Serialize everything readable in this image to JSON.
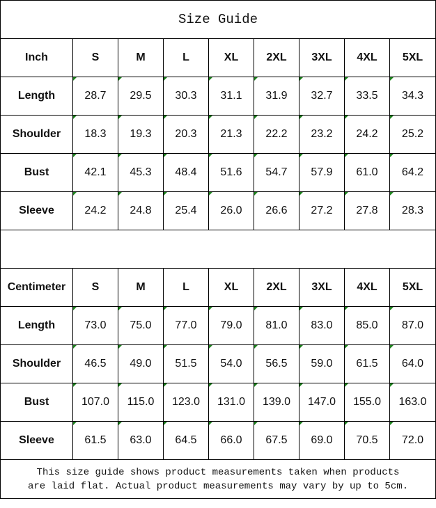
{
  "title": "Size Guide",
  "sizes": [
    "S",
    "M",
    "L",
    "XL",
    "2XL",
    "3XL",
    "4XL",
    "5XL"
  ],
  "inch": {
    "unit_label": "Inch",
    "rows": [
      {
        "label": "Length",
        "values": [
          "28.7",
          "29.5",
          "30.3",
          "31.1",
          "31.9",
          "32.7",
          "33.5",
          "34.3"
        ]
      },
      {
        "label": "Shoulder",
        "values": [
          "18.3",
          "19.3",
          "20.3",
          "21.3",
          "22.2",
          "23.2",
          "24.2",
          "25.2"
        ]
      },
      {
        "label": "Bust",
        "values": [
          "42.1",
          "45.3",
          "48.4",
          "51.6",
          "54.7",
          "57.9",
          "61.0",
          "64.2"
        ]
      },
      {
        "label": "Sleeve",
        "values": [
          "24.2",
          "24.8",
          "25.4",
          "26.0",
          "26.6",
          "27.2",
          "27.8",
          "28.3"
        ]
      }
    ]
  },
  "centimeter": {
    "unit_label": "Centimeter",
    "rows": [
      {
        "label": "Length",
        "values": [
          "73.0",
          "75.0",
          "77.0",
          "79.0",
          "81.0",
          "83.0",
          "85.0",
          "87.0"
        ]
      },
      {
        "label": "Shoulder",
        "values": [
          "46.5",
          "49.0",
          "51.5",
          "54.0",
          "56.5",
          "59.0",
          "61.5",
          "64.0"
        ]
      },
      {
        "label": "Bust",
        "values": [
          "107.0",
          "115.0",
          "123.0",
          "131.0",
          "139.0",
          "147.0",
          "155.0",
          "163.0"
        ]
      },
      {
        "label": "Sleeve",
        "values": [
          "61.5",
          "63.0",
          "64.5",
          "66.0",
          "67.5",
          "69.0",
          "70.5",
          "72.0"
        ]
      }
    ]
  },
  "note": {
    "line1": "This size guide shows product measurements taken when products",
    "line2": "are laid flat. Actual product measurements may vary by up to 5cm."
  },
  "colors": {
    "cell_marker": "#1a7f1a",
    "border": "#000000"
  }
}
